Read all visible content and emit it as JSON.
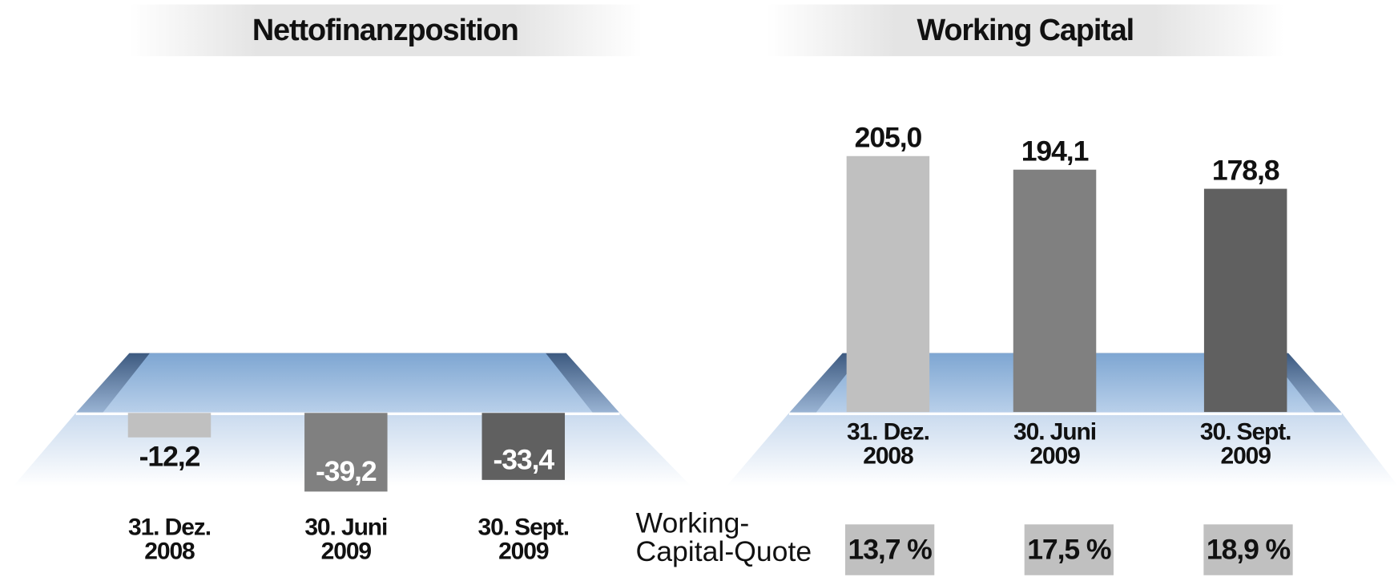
{
  "chart_data": [
    {
      "type": "bar",
      "title": "Nettofinanzposition",
      "categories": [
        "31. Dez. 2008",
        "30. Juni 2009",
        "30. Sept. 2009"
      ],
      "values": [
        -12.2,
        -39.2,
        -33.4
      ],
      "value_labels": [
        "-12,2",
        "-39,2",
        "-33,4"
      ],
      "colors": [
        "#c0c0c0",
        "#808080",
        "#606060"
      ]
    },
    {
      "type": "bar",
      "title": "Working Capital",
      "categories": [
        "31. Dez. 2008",
        "30. Juni 2009",
        "30. Sept. 2009"
      ],
      "values": [
        205.0,
        194.1,
        178.8
      ],
      "value_labels": [
        "205,0",
        "194,1",
        "178,8"
      ],
      "colors": [
        "#c0c0c0",
        "#808080",
        "#606060"
      ],
      "quote_label": "Working-Capital-Quote",
      "quote_values": [
        13.7,
        17.5,
        18.9
      ],
      "quote_value_labels": [
        "13,7 %",
        "17,5 %",
        "18,9 %"
      ]
    }
  ]
}
